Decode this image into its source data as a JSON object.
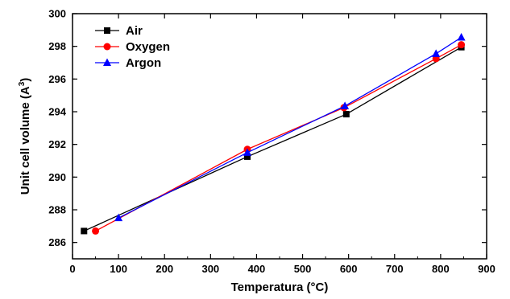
{
  "chart_data": {
    "type": "line",
    "xlabel": "Temperatura (°C)",
    "ylabel_main": "Unit cell volume (A",
    "ylabel_sup": "3",
    "ylabel_close": ")",
    "xlim": [
      0,
      900
    ],
    "ylim": [
      285,
      300
    ],
    "xticks": [
      0,
      100,
      200,
      300,
      400,
      500,
      600,
      700,
      800,
      900
    ],
    "yticks": [
      286,
      288,
      290,
      292,
      294,
      296,
      298,
      300
    ],
    "grid": false,
    "legend_position": "top-left",
    "series": [
      {
        "name": "Air",
        "color": "#000000",
        "marker": "square",
        "x": [
          25,
          380,
          595,
          845
        ],
        "y": [
          286.7,
          291.25,
          293.85,
          297.95
        ]
      },
      {
        "name": "Oxygen",
        "color": "#ff0000",
        "marker": "circle",
        "x": [
          50,
          380,
          590,
          790,
          845
        ],
        "y": [
          286.7,
          291.7,
          294.25,
          297.25,
          298.1
        ]
      },
      {
        "name": "Argon",
        "color": "#0000ff",
        "marker": "triangle",
        "x": [
          100,
          380,
          592,
          790,
          845
        ],
        "y": [
          287.5,
          291.5,
          294.35,
          297.55,
          298.55
        ]
      }
    ]
  }
}
